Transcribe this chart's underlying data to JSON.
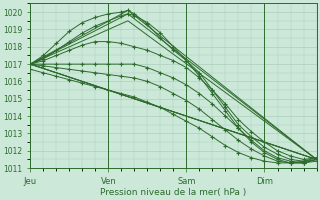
{
  "xlabel": "Pression niveau de la mer( hPa )",
  "ylim": [
    1011,
    1020.5
  ],
  "yticks": [
    1011,
    1012,
    1013,
    1014,
    1015,
    1016,
    1017,
    1018,
    1019,
    1020
  ],
  "day_labels": [
    "Jeu",
    "Ven",
    "Sam",
    "Dim"
  ],
  "day_positions": [
    0,
    72,
    144,
    216
  ],
  "xlim": [
    0,
    264
  ],
  "bg_color": "#cce8d8",
  "grid_color": "#aacfba",
  "line_color": "#2d6b2d",
  "series": [
    {
      "points": [
        [
          0,
          1017.0
        ],
        [
          12,
          1017.5
        ],
        [
          24,
          1018.2
        ],
        [
          36,
          1018.9
        ],
        [
          48,
          1019.4
        ],
        [
          60,
          1019.7
        ],
        [
          72,
          1019.9
        ],
        [
          84,
          1020.0
        ],
        [
          90,
          1020.1
        ],
        [
          96,
          1019.9
        ],
        [
          108,
          1019.3
        ],
        [
          120,
          1018.5
        ],
        [
          132,
          1017.8
        ],
        [
          144,
          1017.2
        ],
        [
          156,
          1016.5
        ],
        [
          168,
          1015.5
        ],
        [
          180,
          1014.5
        ],
        [
          192,
          1013.5
        ],
        [
          204,
          1012.8
        ],
        [
          216,
          1012.2
        ],
        [
          228,
          1011.8
        ],
        [
          240,
          1011.5
        ],
        [
          252,
          1011.4
        ],
        [
          264,
          1011.5
        ]
      ],
      "markers": true
    },
    {
      "points": [
        [
          0,
          1017.0
        ],
        [
          12,
          1017.3
        ],
        [
          24,
          1017.8
        ],
        [
          36,
          1018.3
        ],
        [
          48,
          1018.8
        ],
        [
          60,
          1019.2
        ],
        [
          72,
          1019.5
        ],
        [
          84,
          1019.8
        ],
        [
          90,
          1019.9
        ],
        [
          96,
          1019.8
        ],
        [
          108,
          1019.4
        ],
        [
          120,
          1018.8
        ],
        [
          132,
          1018.0
        ],
        [
          144,
          1017.2
        ],
        [
          156,
          1016.3
        ],
        [
          168,
          1015.3
        ],
        [
          180,
          1014.3
        ],
        [
          192,
          1013.3
        ],
        [
          204,
          1012.5
        ],
        [
          216,
          1011.9
        ],
        [
          228,
          1011.5
        ],
        [
          240,
          1011.3
        ],
        [
          252,
          1011.3
        ],
        [
          264,
          1011.5
        ]
      ],
      "markers": true
    },
    {
      "points": [
        [
          0,
          1017.0
        ],
        [
          12,
          1017.2
        ],
        [
          24,
          1017.5
        ],
        [
          36,
          1017.8
        ],
        [
          48,
          1018.1
        ],
        [
          60,
          1018.3
        ],
        [
          72,
          1018.3
        ],
        [
          84,
          1018.2
        ],
        [
          96,
          1018.0
        ],
        [
          108,
          1017.8
        ],
        [
          120,
          1017.5
        ],
        [
          132,
          1017.2
        ],
        [
          144,
          1016.8
        ],
        [
          156,
          1016.2
        ],
        [
          168,
          1015.5
        ],
        [
          180,
          1014.7
        ],
        [
          192,
          1013.8
        ],
        [
          204,
          1013.1
        ],
        [
          216,
          1012.5
        ],
        [
          228,
          1012.0
        ],
        [
          240,
          1011.7
        ],
        [
          252,
          1011.5
        ],
        [
          264,
          1011.6
        ]
      ],
      "markers": true
    },
    {
      "points": [
        [
          0,
          1017.0
        ],
        [
          12,
          1017.0
        ],
        [
          24,
          1017.0
        ],
        [
          36,
          1017.0
        ],
        [
          48,
          1017.0
        ],
        [
          60,
          1017.0
        ],
        [
          72,
          1017.0
        ],
        [
          84,
          1017.0
        ],
        [
          96,
          1017.0
        ],
        [
          108,
          1016.8
        ],
        [
          120,
          1016.5
        ],
        [
          132,
          1016.2
        ],
        [
          144,
          1015.8
        ],
        [
          156,
          1015.3
        ],
        [
          168,
          1014.7
        ],
        [
          180,
          1014.0
        ],
        [
          192,
          1013.3
        ],
        [
          204,
          1012.6
        ],
        [
          216,
          1012.0
        ],
        [
          228,
          1011.6
        ],
        [
          240,
          1011.4
        ],
        [
          252,
          1011.3
        ],
        [
          264,
          1011.4
        ]
      ],
      "markers": true
    },
    {
      "points": [
        [
          0,
          1017.0
        ],
        [
          12,
          1016.9
        ],
        [
          24,
          1016.8
        ],
        [
          36,
          1016.7
        ],
        [
          48,
          1016.6
        ],
        [
          60,
          1016.5
        ],
        [
          72,
          1016.4
        ],
        [
          84,
          1016.3
        ],
        [
          96,
          1016.2
        ],
        [
          108,
          1016.0
        ],
        [
          120,
          1015.7
        ],
        [
          132,
          1015.3
        ],
        [
          144,
          1014.9
        ],
        [
          156,
          1014.4
        ],
        [
          168,
          1013.8
        ],
        [
          180,
          1013.2
        ],
        [
          192,
          1012.6
        ],
        [
          204,
          1012.1
        ],
        [
          216,
          1011.7
        ],
        [
          228,
          1011.4
        ],
        [
          240,
          1011.3
        ],
        [
          252,
          1011.3
        ],
        [
          264,
          1011.5
        ]
      ],
      "markers": true
    },
    {
      "points": [
        [
          0,
          1016.7
        ],
        [
          12,
          1016.5
        ],
        [
          24,
          1016.3
        ],
        [
          36,
          1016.1
        ],
        [
          48,
          1015.9
        ],
        [
          60,
          1015.7
        ],
        [
          72,
          1015.5
        ],
        [
          84,
          1015.3
        ],
        [
          96,
          1015.1
        ],
        [
          108,
          1014.8
        ],
        [
          120,
          1014.5
        ],
        [
          132,
          1014.1
        ],
        [
          144,
          1013.7
        ],
        [
          156,
          1013.3
        ],
        [
          168,
          1012.8
        ],
        [
          180,
          1012.3
        ],
        [
          192,
          1011.9
        ],
        [
          204,
          1011.6
        ],
        [
          216,
          1011.4
        ],
        [
          228,
          1011.3
        ],
        [
          240,
          1011.3
        ],
        [
          252,
          1011.4
        ],
        [
          264,
          1011.6
        ]
      ],
      "markers": true
    },
    {
      "points": [
        [
          0,
          1017.0
        ],
        [
          264,
          1011.5
        ]
      ],
      "markers": false
    },
    {
      "points": [
        [
          0,
          1017.0
        ],
        [
          264,
          1011.5
        ]
      ],
      "markers": false
    },
    {
      "points": [
        [
          0,
          1017.0
        ],
        [
          90,
          1020.1
        ],
        [
          264,
          1011.5
        ]
      ],
      "markers": false
    },
    {
      "points": [
        [
          0,
          1017.0
        ],
        [
          90,
          1019.9
        ],
        [
          264,
          1011.5
        ]
      ],
      "markers": false
    },
    {
      "points": [
        [
          0,
          1017.0
        ],
        [
          90,
          1019.5
        ],
        [
          264,
          1011.5
        ]
      ],
      "markers": false
    },
    {
      "points": [
        [
          0,
          1017.0
        ],
        [
          264,
          1011.5
        ]
      ],
      "markers": false
    }
  ]
}
